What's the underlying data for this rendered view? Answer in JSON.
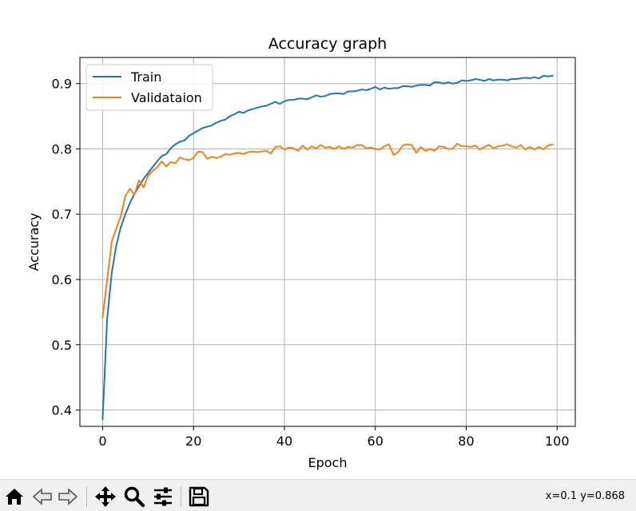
{
  "chart_data": {
    "type": "line",
    "title": "Accuracy graph",
    "xlabel": "Epoch",
    "ylabel": "Accuracy",
    "xlim": [
      -5,
      104
    ],
    "ylim": [
      0.375,
      0.94
    ],
    "xticks": [
      0,
      20,
      40,
      60,
      80,
      100
    ],
    "yticks": [
      0.4,
      0.5,
      0.6,
      0.7,
      0.8,
      0.9
    ],
    "xtick_labels": [
      "0",
      "20",
      "40",
      "60",
      "80",
      "100"
    ],
    "ytick_labels": [
      "0.4",
      "0.5",
      "0.6",
      "0.7",
      "0.8",
      "0.9"
    ],
    "grid": true,
    "legend_position": "top-left",
    "x": [
      0,
      1,
      2,
      3,
      4,
      5,
      6,
      7,
      8,
      9,
      10,
      11,
      12,
      13,
      14,
      15,
      16,
      17,
      18,
      19,
      20,
      21,
      22,
      23,
      24,
      25,
      26,
      27,
      28,
      29,
      30,
      31,
      32,
      33,
      34,
      35,
      36,
      37,
      38,
      39,
      40,
      41,
      42,
      43,
      44,
      45,
      46,
      47,
      48,
      49,
      50,
      51,
      52,
      53,
      54,
      55,
      56,
      57,
      58,
      59,
      60,
      61,
      62,
      63,
      64,
      65,
      66,
      67,
      68,
      69,
      70,
      71,
      72,
      73,
      74,
      75,
      76,
      77,
      78,
      79,
      80,
      81,
      82,
      83,
      84,
      85,
      86,
      87,
      88,
      89,
      90,
      91,
      92,
      93,
      94,
      95,
      96,
      97,
      98,
      99
    ],
    "series": [
      {
        "name": "Train",
        "color": "#1f77b4",
        "values": [
          0.386,
          0.54,
          0.61,
          0.652,
          0.68,
          0.7,
          0.717,
          0.731,
          0.743,
          0.754,
          0.763,
          0.772,
          0.781,
          0.789,
          0.792,
          0.801,
          0.807,
          0.811,
          0.813,
          0.82,
          0.824,
          0.828,
          0.832,
          0.834,
          0.836,
          0.84,
          0.843,
          0.845,
          0.85,
          0.853,
          0.857,
          0.855,
          0.859,
          0.861,
          0.863,
          0.865,
          0.866,
          0.869,
          0.872,
          0.869,
          0.873,
          0.875,
          0.875,
          0.877,
          0.877,
          0.876,
          0.879,
          0.882,
          0.88,
          0.881,
          0.884,
          0.885,
          0.885,
          0.884,
          0.888,
          0.888,
          0.889,
          0.891,
          0.89,
          0.892,
          0.895,
          0.891,
          0.894,
          0.892,
          0.893,
          0.893,
          0.896,
          0.896,
          0.895,
          0.897,
          0.898,
          0.898,
          0.897,
          0.902,
          0.902,
          0.9,
          0.902,
          0.9,
          0.901,
          0.905,
          0.904,
          0.905,
          0.907,
          0.906,
          0.904,
          0.907,
          0.905,
          0.906,
          0.906,
          0.905,
          0.907,
          0.907,
          0.908,
          0.909,
          0.908,
          0.91,
          0.908,
          0.912,
          0.911,
          0.912
        ]
      },
      {
        "name": "Validataion",
        "color": "#ff7f0e",
        "values": [
          0.542,
          0.6,
          0.658,
          0.678,
          0.697,
          0.728,
          0.739,
          0.73,
          0.752,
          0.741,
          0.759,
          0.766,
          0.772,
          0.781,
          0.773,
          0.78,
          0.778,
          0.787,
          0.784,
          0.783,
          0.786,
          0.796,
          0.795,
          0.785,
          0.788,
          0.786,
          0.788,
          0.792,
          0.791,
          0.793,
          0.794,
          0.792,
          0.795,
          0.796,
          0.795,
          0.796,
          0.797,
          0.793,
          0.803,
          0.804,
          0.799,
          0.802,
          0.801,
          0.797,
          0.805,
          0.799,
          0.804,
          0.801,
          0.806,
          0.802,
          0.803,
          0.8,
          0.804,
          0.8,
          0.803,
          0.802,
          0.806,
          0.806,
          0.801,
          0.802,
          0.8,
          0.799,
          0.804,
          0.807,
          0.791,
          0.795,
          0.805,
          0.807,
          0.806,
          0.794,
          0.803,
          0.797,
          0.8,
          0.797,
          0.804,
          0.803,
          0.8,
          0.8,
          0.808,
          0.804,
          0.804,
          0.803,
          0.805,
          0.799,
          0.803,
          0.806,
          0.801,
          0.804,
          0.805,
          0.807,
          0.804,
          0.802,
          0.806,
          0.799,
          0.803,
          0.799,
          0.803,
          0.799,
          0.805,
          0.807
        ]
      }
    ]
  },
  "toolbar": {
    "coordinate_readout": "x=0.1 y=0.868",
    "icons": [
      "home-icon",
      "back-arrow-icon",
      "forward-arrow-icon",
      "pan-icon",
      "zoom-icon",
      "configure-subplots-icon",
      "save-icon"
    ]
  }
}
